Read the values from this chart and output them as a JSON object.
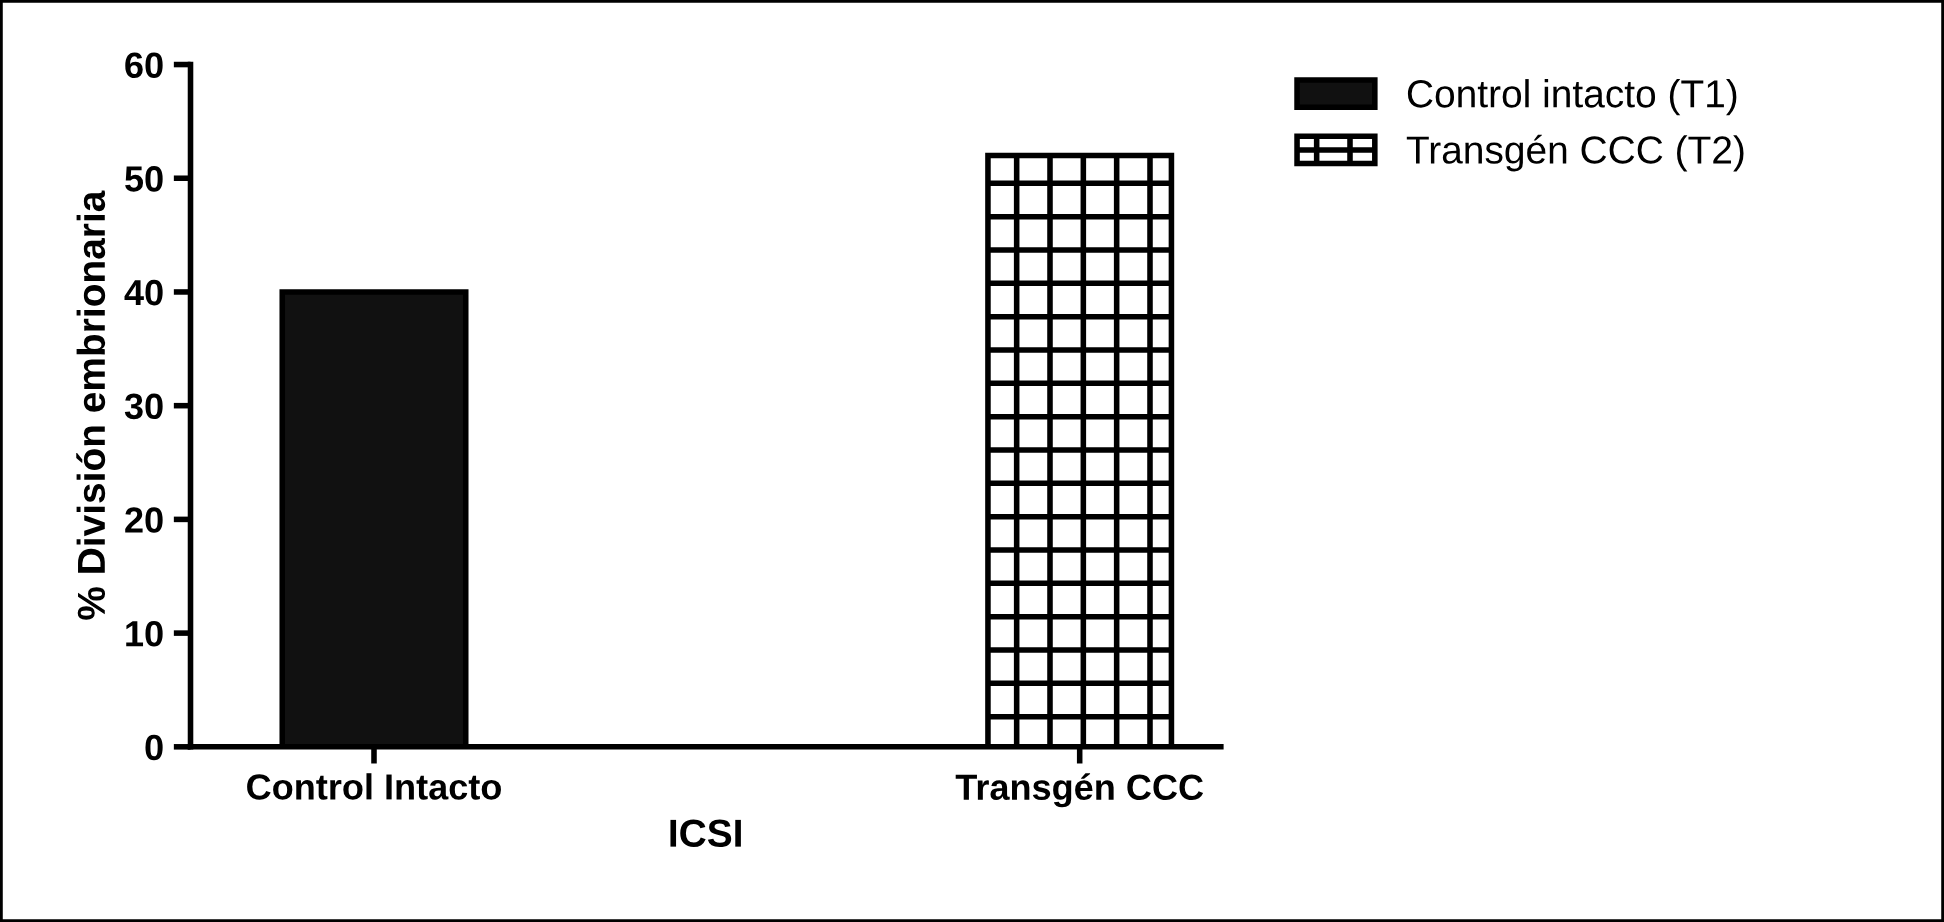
{
  "chart_data": {
    "type": "bar",
    "xlabel": "ICSI",
    "ylabel": "% División embrionaria",
    "categories": [
      "Control Intacto",
      "Transgén CCC"
    ],
    "series": [
      {
        "name": "Control intacto (T1)",
        "color": "#111111",
        "values": [
          40,
          null
        ]
      },
      {
        "name": "Transgén CCC (T2)",
        "color": "#000000",
        "values": [
          null,
          52
        ]
      }
    ],
    "ylim": [
      0,
      60
    ],
    "yticks": [
      0,
      10,
      20,
      30,
      40,
      50,
      60
    ],
    "grid": false,
    "legend": "top right"
  }
}
